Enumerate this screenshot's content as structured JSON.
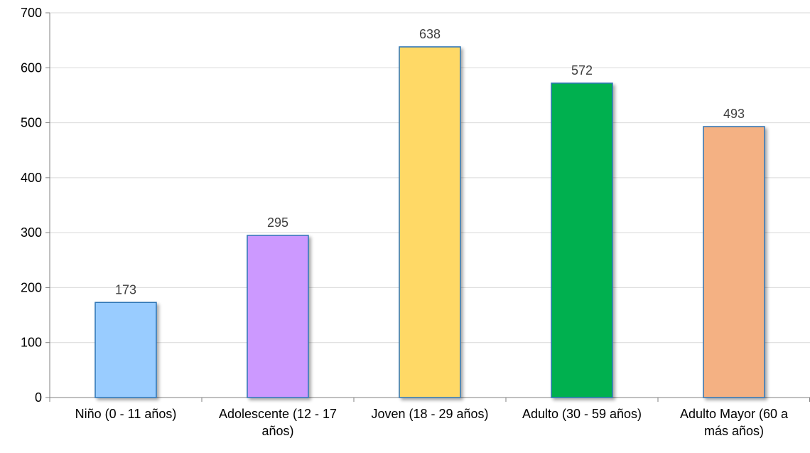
{
  "chart_data": {
    "type": "bar",
    "title": "",
    "xlabel": "",
    "ylabel": "",
    "categories": [
      [
        "Niño (0 - 11 años)"
      ],
      [
        "Adolescente (12 - 17",
        "años)"
      ],
      [
        "Joven (18 - 29 años)"
      ],
      [
        "Adulto (30 - 59 años)"
      ],
      [
        "Adulto Mayor (60 a",
        "más años)"
      ]
    ],
    "values": [
      173,
      295,
      638,
      572,
      493
    ],
    "data_labels": [
      "173",
      "295",
      "638",
      "572",
      "493"
    ],
    "ylim": [
      0,
      700
    ],
    "yticks": [
      0,
      100,
      200,
      300,
      400,
      500,
      600,
      700
    ],
    "ytick_labels": [
      "0",
      "100",
      "200",
      "300",
      "400",
      "500",
      "600",
      "700"
    ],
    "grid": true,
    "legend": "none",
    "colors": [
      "#99CCFF",
      "#CC99FF",
      "#FFD966",
      "#00B050",
      "#F4B183"
    ],
    "bar_border_color": "#2E75B6",
    "gridline_color": "#D9D9D9",
    "axis_color": "#808080",
    "text_color": "#000000",
    "data_label_color": "#404040"
  }
}
